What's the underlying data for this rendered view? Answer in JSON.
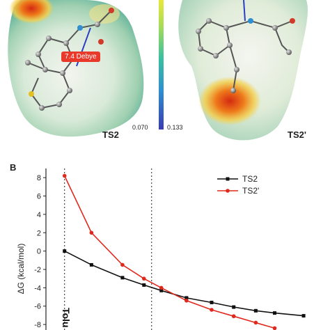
{
  "panel_a": {
    "dipole_label": "7.4 Debye",
    "ts_left_label": "TS2",
    "ts_right_label": "TS2'",
    "scale_min": "0.070",
    "scale_max": "0.133"
  },
  "panel_b": {
    "letter": "B",
    "solvent_label": "Tolu"
  },
  "chart_data": {
    "type": "line",
    "ylabel": "ΔG (kcal/mol)",
    "xlabel": "",
    "ylim": [
      -8.6,
      9
    ],
    "yticks": [
      "8",
      "6",
      "4",
      "2",
      "0",
      "-2",
      "-4",
      "-6",
      "-8"
    ],
    "ytick_values": [
      8,
      6,
      4,
      2,
      0,
      -2,
      -4,
      -6,
      -8
    ],
    "legend_position": "top-right",
    "colors": {
      "TS2": "#111111",
      "TS2'": "#e0281d"
    },
    "series": [
      {
        "name": "TS2",
        "x": [
          2.38,
          3.2,
          4.5,
          5.7,
          6.9,
          9.1,
          12.0,
          15.3,
          19.5,
          24.0,
          33.0
        ],
        "y": [
          0.0,
          -1.5,
          -2.9,
          -3.7,
          -4.3,
          -5.1,
          -5.6,
          -6.1,
          -6.5,
          -6.75,
          -7.05
        ]
      },
      {
        "name": "TS2'",
        "x": [
          2.38,
          3.2,
          4.5,
          5.7,
          6.9,
          9.1,
          12.0,
          15.3,
          19.5,
          24.0
        ],
        "y": [
          8.2,
          2.0,
          -1.5,
          -3.0,
          -4.0,
          -5.4,
          -6.4,
          -7.1,
          -7.8,
          -8.4
        ]
      }
    ],
    "vlines": [
      2.38,
      6.2
    ]
  }
}
